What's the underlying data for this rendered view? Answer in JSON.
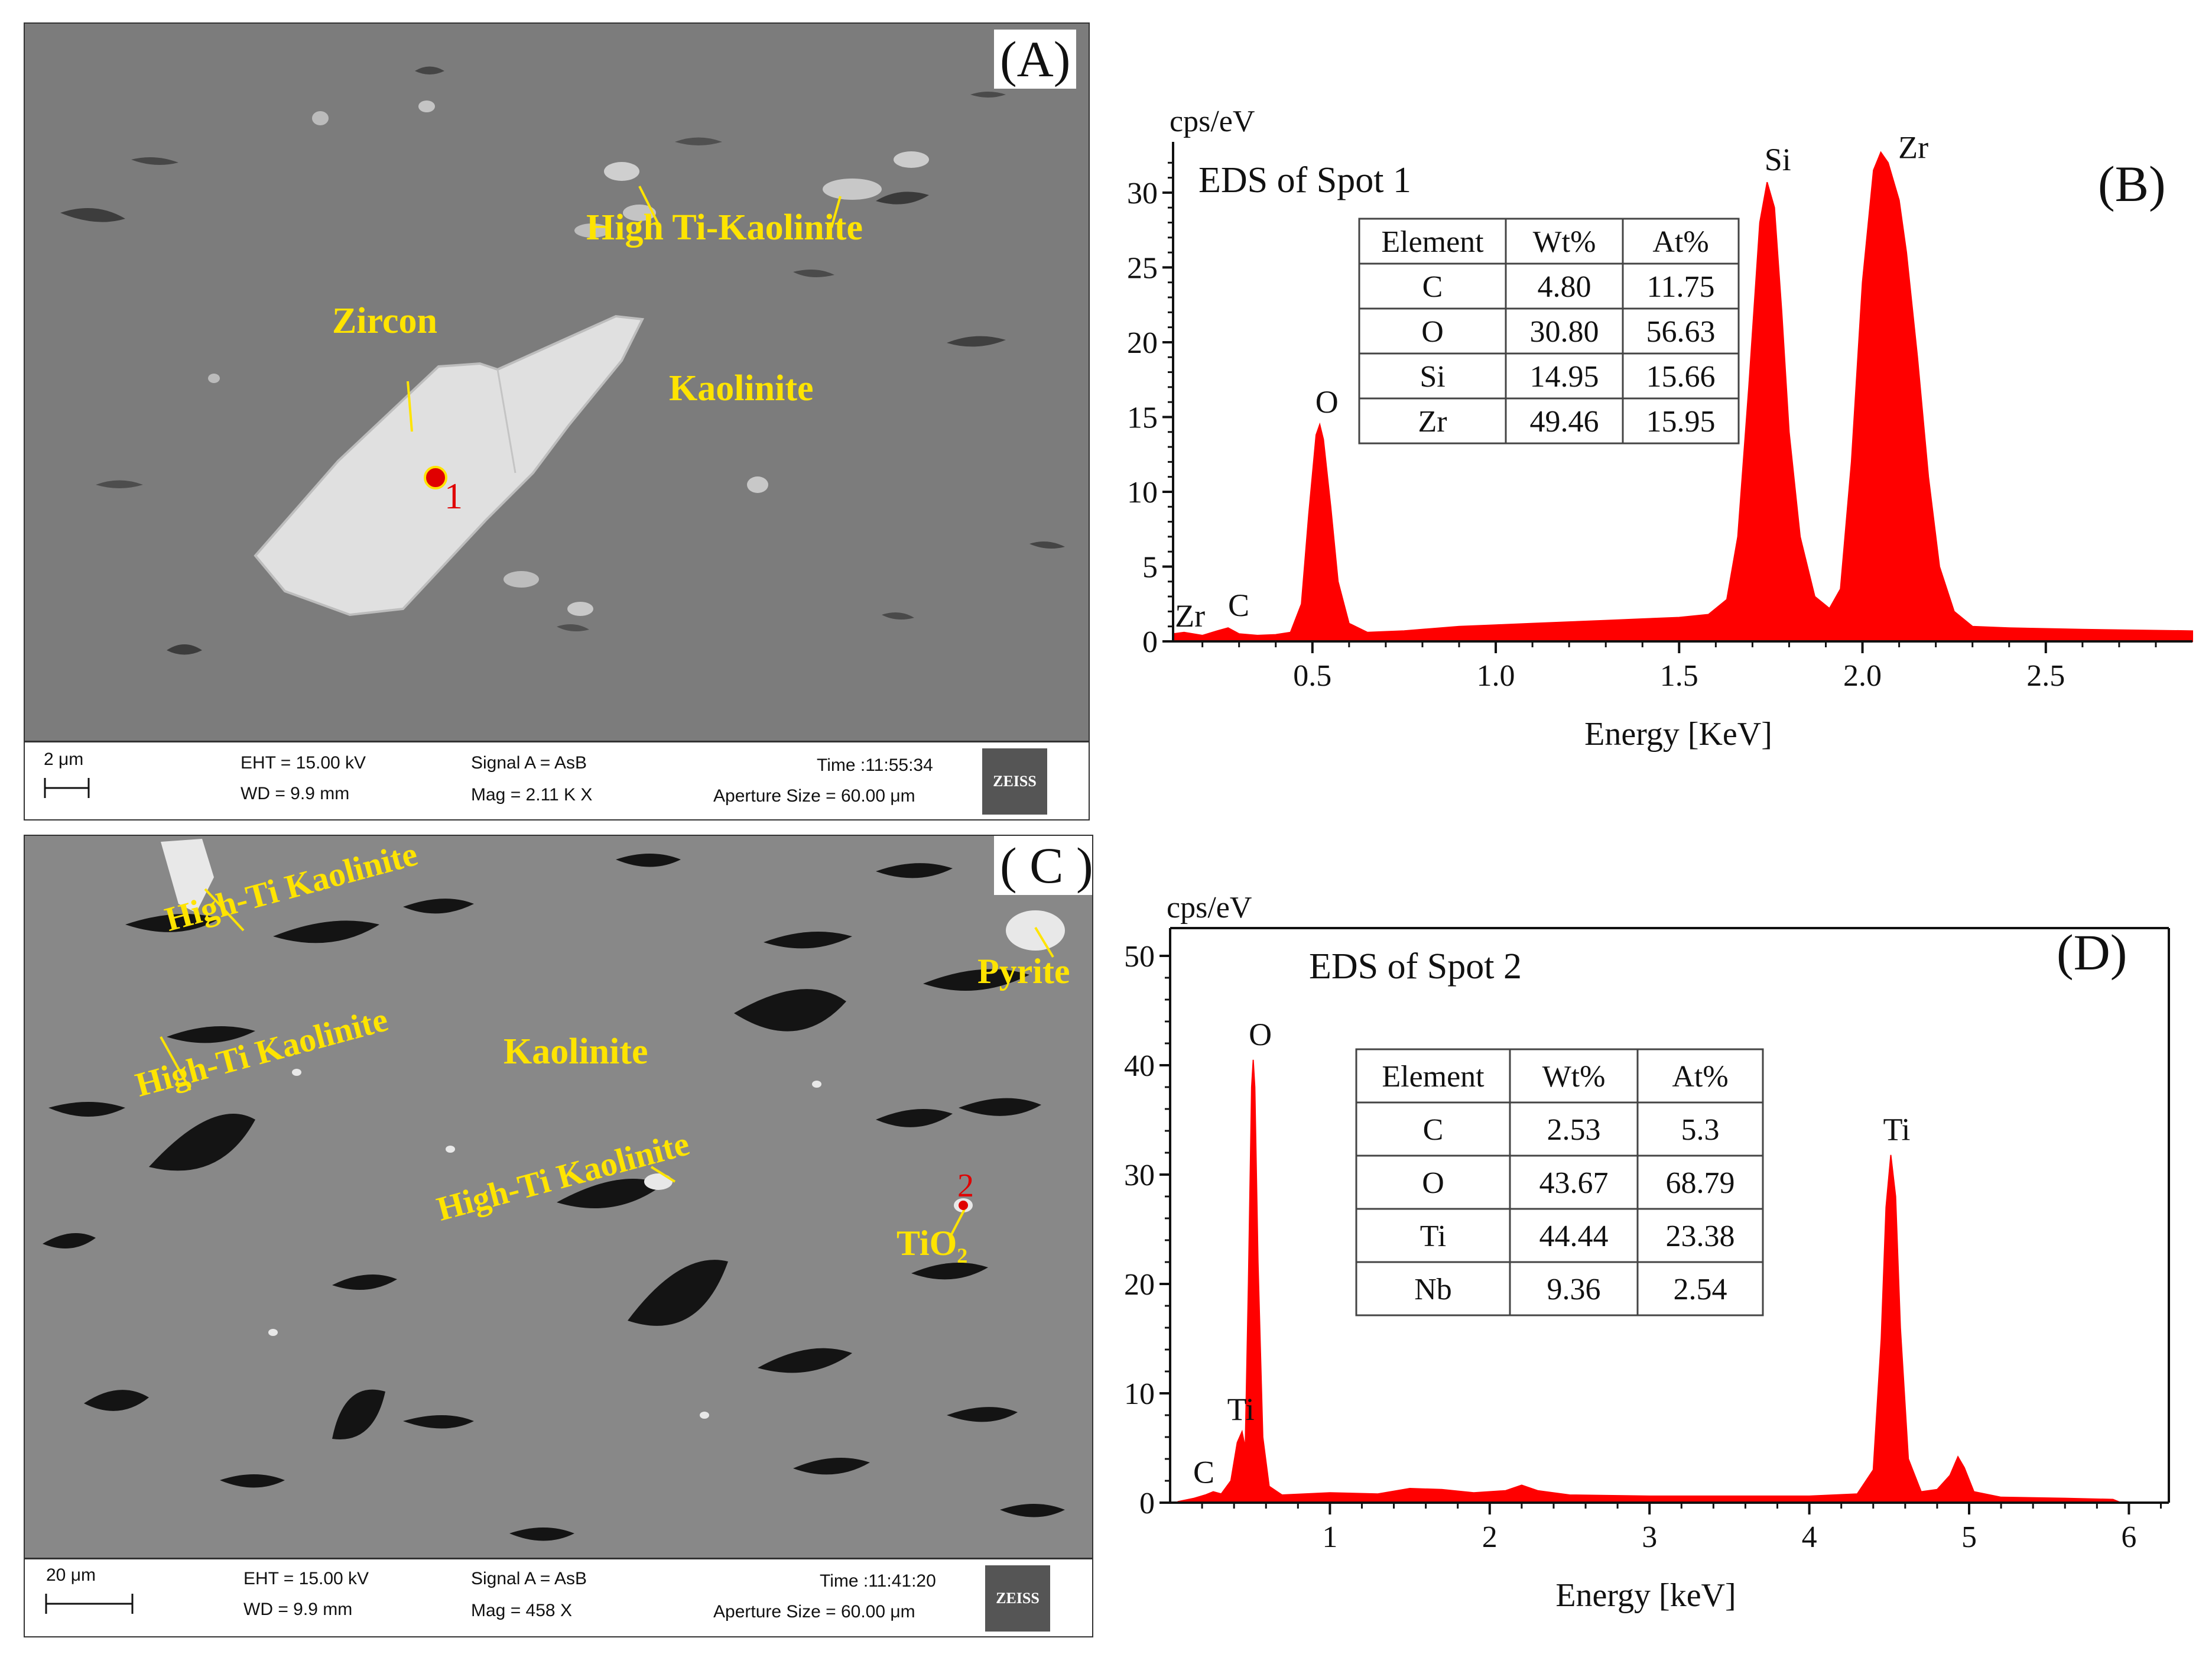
{
  "panel_a": {
    "tag": "(A)",
    "labels": {
      "high_ti_kaolinite": "High Ti-Kaolinite",
      "zircon": "Zircon",
      "kaolinite": "Kaolinite",
      "spot": "1"
    },
    "infobar": {
      "scale": "2 μm",
      "eht": "EHT = 15.00 kV",
      "wd": "WD = 9.9 mm",
      "signal": "Signal A = AsB",
      "mag": "Mag = 2.11 K X",
      "time": "Time :11:55:34",
      "aperture": "Aperture Size = 60.00 μm",
      "brand": "ZEISS"
    }
  },
  "panel_c": {
    "tag": "( C )",
    "labels": {
      "high_ti_1": "High-Ti Kaolinite",
      "high_ti_2": "High-Ti Kaolinite",
      "high_ti_3": "High-Ti Kaolinite",
      "kaolinite": "Kaolinite",
      "pyrite": "Pyrite",
      "tio2": "TiO",
      "tio2_sub": "2",
      "spot": "2"
    },
    "infobar": {
      "scale": "20 μm",
      "eht": "EHT = 15.00 kV",
      "wd": "WD = 9.9 mm",
      "signal": "Signal A = AsB",
      "mag": "Mag = 458 X",
      "time": "Time :11:41:20",
      "aperture": "Aperture Size = 60.00 μm",
      "brand": "ZEISS"
    }
  },
  "chart_data": [
    {
      "type": "area",
      "panel": "(B)",
      "title": "EDS of Spot 1",
      "ylabel": "cps/eV",
      "xlabel": "Energy [KeV]",
      "xlim": [
        0.12,
        2.9
      ],
      "ylim": [
        0,
        33
      ],
      "xticks": [
        0.5,
        1.0,
        1.5,
        2.0,
        2.5
      ],
      "xtick_labels": [
        "0.5",
        "1.0",
        "1.5",
        "2.0",
        "2.5"
      ],
      "yticks": [
        0,
        5,
        10,
        15,
        20,
        25,
        30
      ],
      "color": "#ff0000",
      "peaks": [
        {
          "label": "Zr",
          "x": 0.15,
          "y": 0.6
        },
        {
          "label": "C",
          "x": 0.27,
          "y": 0.9
        },
        {
          "label": "O",
          "x": 0.52,
          "y": 14.5
        },
        {
          "label": "Si",
          "x": 1.74,
          "y": 30.7
        },
        {
          "label": "Zr",
          "x": 2.05,
          "y": 32.7
        }
      ],
      "spectrum": [
        [
          0.12,
          0.5
        ],
        [
          0.15,
          0.6
        ],
        [
          0.2,
          0.4
        ],
        [
          0.24,
          0.7
        ],
        [
          0.27,
          0.9
        ],
        [
          0.3,
          0.5
        ],
        [
          0.35,
          0.4
        ],
        [
          0.4,
          0.45
        ],
        [
          0.44,
          0.6
        ],
        [
          0.47,
          2.5
        ],
        [
          0.49,
          8.5
        ],
        [
          0.51,
          13.8
        ],
        [
          0.52,
          14.5
        ],
        [
          0.53,
          13.5
        ],
        [
          0.55,
          9
        ],
        [
          0.57,
          4
        ],
        [
          0.6,
          1.2
        ],
        [
          0.65,
          0.6
        ],
        [
          0.75,
          0.7
        ],
        [
          0.9,
          1.0
        ],
        [
          1.0,
          1.1
        ],
        [
          1.1,
          1.2
        ],
        [
          1.2,
          1.3
        ],
        [
          1.3,
          1.4
        ],
        [
          1.4,
          1.5
        ],
        [
          1.5,
          1.6
        ],
        [
          1.58,
          1.8
        ],
        [
          1.63,
          2.8
        ],
        [
          1.66,
          7
        ],
        [
          1.69,
          17
        ],
        [
          1.72,
          28
        ],
        [
          1.74,
          30.7
        ],
        [
          1.76,
          29
        ],
        [
          1.78,
          22
        ],
        [
          1.8,
          14
        ],
        [
          1.83,
          7
        ],
        [
          1.87,
          3
        ],
        [
          1.91,
          2.2
        ],
        [
          1.94,
          3.5
        ],
        [
          1.97,
          12
        ],
        [
          2.0,
          24
        ],
        [
          2.03,
          31.5
        ],
        [
          2.05,
          32.7
        ],
        [
          2.07,
          32
        ],
        [
          2.1,
          29.5
        ],
        [
          2.12,
          26
        ],
        [
          2.15,
          19
        ],
        [
          2.18,
          11
        ],
        [
          2.21,
          5
        ],
        [
          2.25,
          2
        ],
        [
          2.3,
          1.0
        ],
        [
          2.4,
          0.9
        ],
        [
          2.6,
          0.8
        ],
        [
          2.9,
          0.7
        ]
      ],
      "table": {
        "headers": [
          "Element",
          "Wt%",
          "At%"
        ],
        "rows": [
          [
            "C",
            "4.80",
            "11.75"
          ],
          [
            "O",
            "30.80",
            "56.63"
          ],
          [
            "Si",
            "14.95",
            "15.66"
          ],
          [
            "Zr",
            "49.46",
            "15.95"
          ]
        ]
      }
    },
    {
      "type": "area",
      "panel": "(D)",
      "title": "EDS of Spot 2",
      "ylabel": "cps/eV",
      "xlabel": "Energy [keV]",
      "xlim": [
        0,
        6.25
      ],
      "ylim": [
        0,
        52
      ],
      "xticks": [
        1,
        2,
        3,
        4,
        5,
        6
      ],
      "xtick_labels": [
        "1",
        "2",
        "3",
        "4",
        "5",
        "6"
      ],
      "yticks": [
        0,
        10,
        20,
        30,
        40,
        50
      ],
      "color": "#ff0000",
      "peaks": [
        {
          "label": "C",
          "x": 0.27,
          "y": 1.0
        },
        {
          "label": "Ti",
          "x": 0.45,
          "y": 6.5
        },
        {
          "label": "O",
          "x": 0.52,
          "y": 40.5
        },
        {
          "label": "Ti",
          "x": 4.51,
          "y": 31.8
        }
      ],
      "spectrum": [
        [
          0.05,
          0.1
        ],
        [
          0.15,
          0.4
        ],
        [
          0.22,
          0.7
        ],
        [
          0.27,
          1.0
        ],
        [
          0.32,
          0.8
        ],
        [
          0.38,
          2
        ],
        [
          0.42,
          5.5
        ],
        [
          0.45,
          6.5
        ],
        [
          0.47,
          5
        ],
        [
          0.49,
          20
        ],
        [
          0.51,
          38
        ],
        [
          0.52,
          40.5
        ],
        [
          0.53,
          38
        ],
        [
          0.55,
          22
        ],
        [
          0.58,
          6
        ],
        [
          0.62,
          1.5
        ],
        [
          0.7,
          0.7
        ],
        [
          1.0,
          0.9
        ],
        [
          1.3,
          0.8
        ],
        [
          1.5,
          1.3
        ],
        [
          1.7,
          1.2
        ],
        [
          1.9,
          0.9
        ],
        [
          2.1,
          1.1
        ],
        [
          2.2,
          1.6
        ],
        [
          2.3,
          1.1
        ],
        [
          2.5,
          0.7
        ],
        [
          3.0,
          0.6
        ],
        [
          3.5,
          0.6
        ],
        [
          4.0,
          0.6
        ],
        [
          4.3,
          0.8
        ],
        [
          4.4,
          3
        ],
        [
          4.45,
          15
        ],
        [
          4.48,
          27
        ],
        [
          4.51,
          31.8
        ],
        [
          4.54,
          28
        ],
        [
          4.57,
          16
        ],
        [
          4.62,
          4
        ],
        [
          4.7,
          1.0
        ],
        [
          4.8,
          1.2
        ],
        [
          4.88,
          2.5
        ],
        [
          4.93,
          4.2
        ],
        [
          4.97,
          3.2
        ],
        [
          5.03,
          1.0
        ],
        [
          5.2,
          0.5
        ],
        [
          5.6,
          0.4
        ],
        [
          5.9,
          0.3
        ],
        [
          5.95,
          0
        ]
      ],
      "table": {
        "headers": [
          "Element",
          "Wt%",
          "At%"
        ],
        "rows": [
          [
            "C",
            "2.53",
            "5.3"
          ],
          [
            "O",
            "43.67",
            "68.79"
          ],
          [
            "Ti",
            "44.44",
            "23.38"
          ],
          [
            "Nb",
            "9.36",
            "2.54"
          ]
        ]
      }
    }
  ]
}
